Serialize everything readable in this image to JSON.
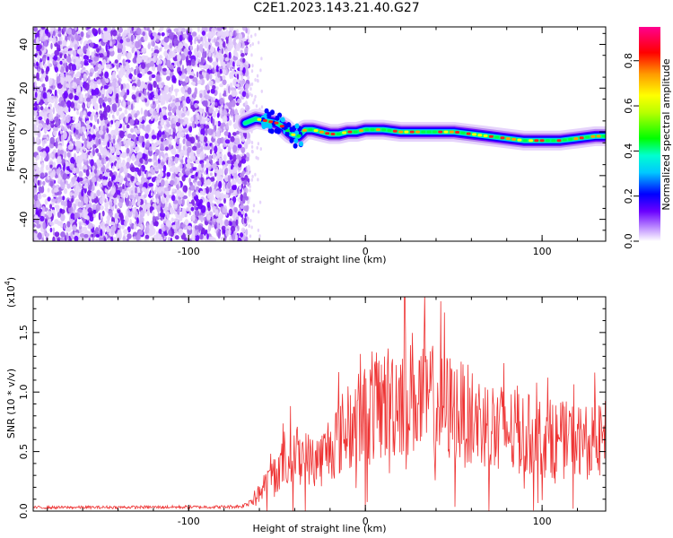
{
  "title": "C2E1.2023.143.21.40.G27",
  "colors": {
    "scatter": "#7a1ee8",
    "snr_line": "#ee3333"
  },
  "chart_data": [
    {
      "type": "heatmap",
      "xlabel": "Height of straight line (km)",
      "ylabel": "Frequency (Hz)",
      "xlim": [
        -188,
        136
      ],
      "ylim": [
        -50,
        48
      ],
      "x_ticks": [
        -100,
        0,
        100
      ],
      "x_tick_labels": [
        "-100",
        "0",
        "100"
      ],
      "y_ticks": [
        -40,
        -20,
        0,
        20,
        40
      ],
      "y_tick_labels": [
        "-40",
        "-20",
        "0",
        "20",
        "40"
      ],
      "noise_region": {
        "x_range": [
          -188,
          -66
        ],
        "y_range": [
          -50,
          48
        ]
      },
      "track": {
        "x": [
          -68,
          -62,
          -56,
          -50,
          -46,
          -42,
          -38,
          -34,
          -30,
          -25,
          -20,
          -15,
          -10,
          -5,
          0,
          5,
          10,
          20,
          30,
          40,
          50,
          60,
          70,
          80,
          90,
          100,
          110,
          120,
          130,
          136
        ],
        "y": [
          4,
          6,
          5,
          4,
          2,
          -1,
          -2,
          1,
          1,
          0,
          -1,
          -1,
          0,
          0,
          1,
          1,
          1,
          0,
          0,
          0,
          0,
          -1,
          -2,
          -3,
          -4,
          -4,
          -4,
          -3,
          -2,
          -2
        ]
      },
      "colorbar": {
        "label": "Normalized spectral amplitude",
        "range": [
          0.0,
          0.95
        ],
        "ticks": [
          0.0,
          0.2,
          0.4,
          0.6,
          0.8
        ],
        "tick_labels": [
          "0.0",
          "0.2",
          "0.4",
          "0.6",
          "0.8"
        ]
      }
    },
    {
      "type": "line",
      "xlabel": "Height of straight line (km)",
      "ylabel": "SNR (10 * v/v)",
      "scale_label": "(x10",
      "scale_exp": "4",
      "scale_close": ")",
      "xlim": [
        -188,
        136
      ],
      "ylim": [
        0,
        18000
      ],
      "x_ticks": [
        -100,
        0,
        100
      ],
      "x_tick_labels": [
        "-100",
        "0",
        "100"
      ],
      "y_ticks": [
        0,
        5000,
        10000,
        15000
      ],
      "y_tick_labels": [
        "0.0",
        "0.5",
        "1.0",
        "1.5"
      ],
      "envelope": {
        "x": [
          -188,
          -80,
          -70,
          -66,
          -60,
          -55,
          -50,
          -45,
          -40,
          -35,
          -30,
          -25,
          -20,
          -10,
          0,
          10,
          20,
          25,
          30,
          40,
          50,
          60,
          70,
          80,
          90,
          100,
          110,
          120,
          130,
          136
        ],
        "y": [
          300,
          350,
          400,
          700,
          1500,
          2500,
          3500,
          4000,
          4800,
          4500,
          4200,
          4400,
          5500,
          7000,
          8000,
          9000,
          9800,
          10200,
          9500,
          9000,
          8500,
          7800,
          7300,
          6800,
          6400,
          6200,
          6000,
          5900,
          5700,
          6000
        ]
      },
      "noise_fraction": 0.35,
      "peak": {
        "x": 22,
        "y": 17900
      }
    }
  ]
}
